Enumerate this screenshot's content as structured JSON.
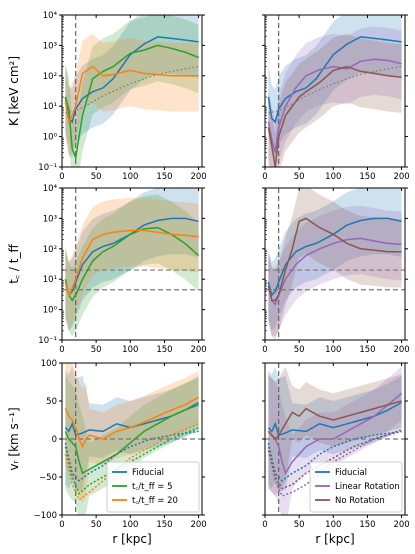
{
  "figure": {
    "xlabel": "r  [kpc]",
    "x_ticks": [
      "0",
      "50",
      "100",
      "150",
      "200"
    ]
  },
  "colors": {
    "Fiducial": "#1f77b4",
    "tc_tff_5": "#2ca02c",
    "tc_tff_20": "#ff7f0e",
    "Linear Rotation": "#9467bd",
    "No Rotation": "#8c564b"
  },
  "chart_data": [
    {
      "type": "line",
      "row": 0,
      "col": 0,
      "ylabel": "K  [keV cm²]",
      "yscale": "log",
      "xlim": [
        0,
        205
      ],
      "ylim": [
        0.1,
        10000
      ],
      "y_ticks": [
        "10⁻¹",
        "10⁰",
        "10¹",
        "10²",
        "10³",
        "10⁴"
      ],
      "vlines": [
        20
      ],
      "series": [
        {
          "key": "Fiducial",
          "x": [
            5,
            10,
            15,
            20,
            30,
            45,
            60,
            75,
            100,
            120,
            140,
            160,
            180,
            200
          ],
          "y": [
            20,
            4,
            3,
            8,
            18,
            30,
            40,
            80,
            500,
            1100,
            1900,
            1700,
            1500,
            1300
          ]
        },
        {
          "key": "tc_tff_5",
          "x": [
            5,
            10,
            15,
            20,
            30,
            45,
            60,
            75,
            100,
            120,
            140,
            160,
            180,
            200
          ],
          "y": [
            20,
            8,
            0.4,
            0.2,
            5,
            80,
            140,
            200,
            550,
            700,
            1000,
            800,
            600,
            400
          ]
        },
        {
          "key": "tc_tff_20",
          "x": [
            5,
            10,
            15,
            20,
            30,
            45,
            60,
            75,
            100,
            120,
            140,
            160,
            180,
            200
          ],
          "y": [
            15,
            3,
            5,
            10,
            120,
            200,
            100,
            110,
            150,
            120,
            110,
            100,
            100,
            100
          ]
        },
        {
          "key": "baseline",
          "dashed": true,
          "x": [
            5,
            20,
            40,
            60,
            80,
            100,
            120,
            140,
            160,
            180,
            200
          ],
          "y": [
            6,
            7,
            12,
            22,
            35,
            55,
            80,
            110,
            140,
            170,
            200
          ]
        }
      ]
    },
    {
      "type": "line",
      "row": 0,
      "col": 1,
      "yscale": "log",
      "xlim": [
        0,
        205
      ],
      "ylim": [
        0.1,
        10000
      ],
      "vlines": [
        20
      ],
      "series": [
        {
          "key": "Fiducial",
          "x": [
            5,
            10,
            15,
            20,
            30,
            45,
            60,
            75,
            100,
            120,
            140,
            160,
            180,
            200
          ],
          "y": [
            20,
            4,
            3,
            8,
            18,
            30,
            40,
            80,
            500,
            1100,
            1900,
            1700,
            1500,
            1300
          ]
        },
        {
          "key": "Linear Rotation",
          "x": [
            5,
            10,
            15,
            20,
            30,
            45,
            60,
            80,
            100,
            120,
            140,
            160,
            180,
            200
          ],
          "y": [
            3,
            0.8,
            0.3,
            2,
            10,
            40,
            100,
            160,
            200,
            170,
            300,
            350,
            320,
            250
          ]
        },
        {
          "key": "No Rotation",
          "x": [
            5,
            10,
            15,
            20,
            30,
            40,
            50,
            60,
            80,
            100,
            120,
            140,
            160,
            180,
            200
          ],
          "y": [
            2,
            0.5,
            0.1,
            1,
            5,
            10,
            20,
            30,
            60,
            150,
            200,
            140,
            120,
            100,
            90
          ]
        },
        {
          "key": "baseline",
          "dashed": true,
          "x": [
            5,
            20,
            40,
            60,
            80,
            100,
            120,
            140,
            160,
            180,
            200
          ],
          "y": [
            6,
            7,
            12,
            22,
            35,
            55,
            80,
            110,
            140,
            170,
            200
          ]
        }
      ]
    },
    {
      "type": "line",
      "row": 1,
      "col": 0,
      "ylabel": "t꜀ / t_ff",
      "yscale": "log",
      "xlim": [
        0,
        205
      ],
      "ylim": [
        0.1,
        10000
      ],
      "y_ticks": [
        "10⁻¹",
        "10⁰",
        "10¹",
        "10²",
        "10³",
        "10⁴"
      ],
      "vlines": [
        20
      ],
      "hlines": [
        20,
        4.5
      ],
      "series": [
        {
          "key": "Fiducial",
          "x": [
            5,
            10,
            15,
            20,
            30,
            45,
            60,
            75,
            100,
            120,
            140,
            160,
            180,
            200
          ],
          "y": [
            8,
            3,
            4,
            8,
            30,
            80,
            120,
            150,
            300,
            600,
            850,
            1000,
            1000,
            800
          ]
        },
        {
          "key": "tc_tff_5",
          "x": [
            5,
            10,
            15,
            20,
            30,
            45,
            60,
            75,
            100,
            120,
            140,
            160,
            180,
            200
          ],
          "y": [
            10,
            3,
            2,
            3,
            10,
            40,
            80,
            120,
            300,
            450,
            500,
            300,
            150,
            60
          ]
        },
        {
          "key": "tc_tff_20",
          "x": [
            5,
            10,
            15,
            20,
            30,
            45,
            60,
            75,
            100,
            120,
            140,
            160,
            180,
            200
          ],
          "y": [
            8,
            3,
            5,
            10,
            50,
            200,
            300,
            350,
            400,
            400,
            350,
            300,
            280,
            250
          ]
        }
      ]
    },
    {
      "type": "line",
      "row": 1,
      "col": 1,
      "yscale": "log",
      "xlim": [
        0,
        205
      ],
      "ylim": [
        0.1,
        10000
      ],
      "vlines": [
        20
      ],
      "hlines": [
        20,
        4.5
      ],
      "series": [
        {
          "key": "Fiducial",
          "x": [
            5,
            10,
            15,
            20,
            30,
            45,
            60,
            75,
            100,
            120,
            140,
            160,
            180,
            200
          ],
          "y": [
            8,
            3,
            4,
            8,
            30,
            80,
            120,
            150,
            300,
            600,
            850,
            1000,
            1000,
            800
          ]
        },
        {
          "key": "Linear Rotation",
          "x": [
            5,
            10,
            15,
            20,
            30,
            45,
            60,
            80,
            100,
            120,
            140,
            160,
            180,
            200
          ],
          "y": [
            6,
            2,
            1.5,
            3,
            10,
            30,
            60,
            100,
            150,
            200,
            220,
            180,
            150,
            140
          ]
        },
        {
          "key": "No Rotation",
          "x": [
            5,
            10,
            15,
            20,
            30,
            40,
            50,
            60,
            80,
            100,
            120,
            140,
            160,
            180,
            200
          ],
          "y": [
            6,
            2,
            2,
            3,
            20,
            100,
            800,
            1000,
            500,
            300,
            150,
            100,
            90,
            80,
            80
          ]
        }
      ]
    },
    {
      "type": "line",
      "row": 2,
      "col": 0,
      "ylabel": "vᵣ  [km s⁻¹]",
      "yscale": "linear",
      "xlim": [
        0,
        205
      ],
      "ylim": [
        -100,
        100
      ],
      "y_ticks": [
        "−100",
        "−50",
        "0",
        "50",
        "100"
      ],
      "vlines": [
        20
      ],
      "hlines": [
        0
      ],
      "legend": {
        "position": "lower-right",
        "entries": [
          "Fiducial",
          "t꜀/t_ff = 5",
          "t꜀/t_ff = 20"
        ],
        "keys": [
          "Fiducial",
          "tc_tff_5",
          "tc_tff_20"
        ]
      },
      "series": [
        {
          "key": "Fiducial",
          "x": [
            5,
            10,
            15,
            20,
            30,
            40,
            60,
            80,
            100,
            120,
            140,
            160,
            180,
            200
          ],
          "y": [
            15,
            10,
            20,
            5,
            8,
            12,
            10,
            20,
            15,
            20,
            25,
            30,
            38,
            48
          ]
        },
        {
          "key": "tc_tff_5",
          "x": [
            5,
            10,
            15,
            20,
            25,
            30,
            40,
            60,
            80,
            100,
            120,
            140,
            160,
            180,
            200
          ],
          "y": [
            10,
            0,
            -5,
            -10,
            -30,
            -45,
            -40,
            -30,
            -20,
            -5,
            10,
            20,
            30,
            38,
            45
          ]
        },
        {
          "key": "tc_tff_20",
          "x": [
            5,
            10,
            15,
            20,
            25,
            30,
            35,
            40,
            60,
            80,
            100,
            120,
            140,
            160,
            180,
            200
          ],
          "y": [
            40,
            30,
            25,
            15,
            0,
            -10,
            0,
            5,
            0,
            10,
            15,
            22,
            30,
            38,
            45,
            55
          ]
        },
        {
          "key": "Fiducial",
          "dotted": true,
          "x": [
            5,
            15,
            25,
            40,
            60,
            80,
            100,
            130,
            160,
            200
          ],
          "y": [
            -5,
            -45,
            -55,
            -45,
            -35,
            -20,
            -10,
            0,
            5,
            10
          ]
        },
        {
          "key": "tc_tff_5",
          "dotted": true,
          "x": [
            5,
            15,
            25,
            40,
            60,
            80,
            100,
            130,
            160,
            200
          ],
          "y": [
            -10,
            -50,
            -72,
            -60,
            -50,
            -40,
            -30,
            -15,
            0,
            15
          ]
        },
        {
          "key": "tc_tff_20",
          "dotted": true,
          "x": [
            5,
            15,
            25,
            40,
            60,
            80,
            100,
            130,
            160,
            200
          ],
          "y": [
            -20,
            -60,
            -80,
            -70,
            -55,
            -40,
            -25,
            -10,
            5,
            20
          ]
        }
      ]
    },
    {
      "type": "line",
      "row": 2,
      "col": 1,
      "yscale": "linear",
      "xlim": [
        0,
        205
      ],
      "ylim": [
        -100,
        100
      ],
      "vlines": [
        20
      ],
      "hlines": [
        0
      ],
      "legend": {
        "position": "lower-right",
        "entries": [
          "Fiducial",
          "Linear Rotation",
          "No Rotation"
        ],
        "keys": [
          "Fiducial",
          "Linear Rotation",
          "No Rotation"
        ]
      },
      "series": [
        {
          "key": "Fiducial",
          "x": [
            5,
            10,
            15,
            20,
            30,
            40,
            60,
            80,
            100,
            120,
            140,
            160,
            180,
            200
          ],
          "y": [
            15,
            10,
            20,
            5,
            8,
            12,
            10,
            20,
            15,
            20,
            25,
            30,
            38,
            48
          ]
        },
        {
          "key": "Linear Rotation",
          "x": [
            5,
            10,
            15,
            20,
            25,
            30,
            40,
            50,
            60,
            80,
            100,
            120,
            140,
            160,
            180,
            200
          ],
          "y": [
            10,
            5,
            0,
            -10,
            -30,
            -45,
            -30,
            -20,
            -10,
            0,
            0,
            10,
            20,
            30,
            45,
            60
          ]
        },
        {
          "key": "No Rotation",
          "x": [
            5,
            10,
            15,
            20,
            30,
            40,
            50,
            60,
            80,
            100,
            120,
            140,
            160,
            180,
            200
          ],
          "y": [
            10,
            5,
            0,
            5,
            20,
            35,
            30,
            40,
            30,
            25,
            30,
            35,
            40,
            45,
            50
          ]
        },
        {
          "key": "Fiducial",
          "dotted": true,
          "x": [
            5,
            15,
            25,
            40,
            60,
            80,
            100,
            130,
            160,
            200
          ],
          "y": [
            -5,
            -45,
            -55,
            -45,
            -35,
            -20,
            -10,
            0,
            5,
            10
          ]
        },
        {
          "key": "Linear Rotation",
          "dotted": true,
          "x": [
            5,
            15,
            25,
            40,
            60,
            80,
            100,
            130,
            160,
            200
          ],
          "y": [
            -10,
            -55,
            -75,
            -70,
            -60,
            -45,
            -30,
            -15,
            0,
            10
          ]
        },
        {
          "key": "No Rotation",
          "dotted": true,
          "x": [
            5,
            15,
            25,
            40,
            60,
            80,
            100,
            130,
            160,
            200
          ],
          "y": [
            -15,
            -50,
            -65,
            -60,
            -45,
            -35,
            -25,
            -10,
            0,
            12
          ]
        }
      ]
    }
  ]
}
